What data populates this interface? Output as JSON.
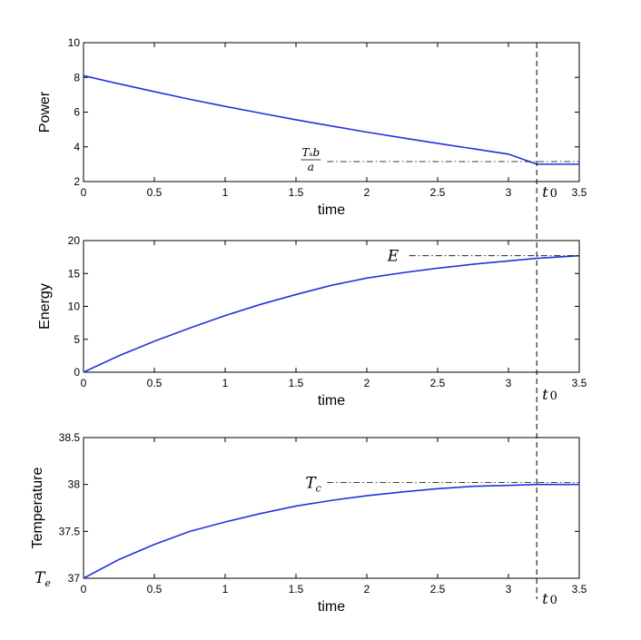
{
  "chart_data": [
    {
      "type": "line",
      "xlabel": "time",
      "ylabel": "Power",
      "xlim": [
        0,
        3.5
      ],
      "ylim": [
        2,
        10
      ],
      "xticks": [
        "0",
        "0.5",
        "1",
        "1.5",
        "2",
        "2.5",
        "3",
        "3.5"
      ],
      "yticks": [
        "2",
        "4",
        "6",
        "8",
        "10"
      ],
      "grid": false,
      "series": [
        {
          "color": "#2233dd",
          "x": [
            0,
            0.25,
            0.5,
            0.75,
            1.0,
            1.25,
            1.5,
            1.75,
            2.0,
            2.25,
            2.5,
            2.75,
            3.0,
            3.2,
            3.5
          ],
          "y": [
            8.1,
            7.63,
            7.18,
            6.74,
            6.33,
            5.94,
            5.56,
            5.2,
            4.85,
            4.52,
            4.2,
            3.89,
            3.58,
            3.0,
            3.0
          ]
        }
      ],
      "annotations": [
        {
          "text_main": "Tₛb",
          "text_sub": "a",
          "y": 3.15,
          "x_start": 1.72,
          "x_end": 3.5,
          "style": "dash-dot"
        }
      ]
    },
    {
      "type": "line",
      "xlabel": "time",
      "ylabel": "Energy",
      "xlim": [
        0,
        3.5
      ],
      "ylim": [
        0,
        20
      ],
      "xticks": [
        "0",
        "0.5",
        "1",
        "1.5",
        "2",
        "2.5",
        "3",
        "3.5"
      ],
      "yticks": [
        "0",
        "5",
        "10",
        "15",
        "20"
      ],
      "grid": false,
      "series": [
        {
          "color": "#2233dd",
          "x": [
            0,
            0.25,
            0.5,
            0.75,
            1.0,
            1.25,
            1.5,
            1.75,
            2.0,
            2.25,
            2.5,
            2.75,
            3.0,
            3.2,
            3.5
          ],
          "y": [
            0,
            2.5,
            4.7,
            6.7,
            8.6,
            10.3,
            11.8,
            13.2,
            14.3,
            15.1,
            15.8,
            16.4,
            16.9,
            17.3,
            17.7
          ]
        }
      ],
      "annotations": [
        {
          "text": "E",
          "y": 17.7,
          "x_start": 2.3,
          "x_end": 3.5,
          "style": "dash-dot"
        }
      ]
    },
    {
      "type": "line",
      "xlabel": "time",
      "ylabel": "Temperature",
      "xlim": [
        0,
        3.5
      ],
      "ylim": [
        37,
        38.5
      ],
      "xticks": [
        "0",
        "0.5",
        "1",
        "1.5",
        "2",
        "2.5",
        "3",
        "3.5"
      ],
      "yticks": [
        "37",
        "37.5",
        "38",
        "38.5"
      ],
      "grid": false,
      "series": [
        {
          "color": "#2233dd",
          "x": [
            0,
            0.25,
            0.5,
            0.75,
            1.0,
            1.25,
            1.5,
            1.75,
            2.0,
            2.25,
            2.5,
            2.75,
            3.0,
            3.2,
            3.5
          ],
          "y": [
            37.0,
            37.2,
            37.36,
            37.5,
            37.6,
            37.69,
            37.77,
            37.83,
            37.88,
            37.92,
            37.955,
            37.98,
            37.99,
            38.0,
            38.0
          ]
        }
      ],
      "annotations": [
        {
          "text": "T",
          "text_sub": "c",
          "y": 38.02,
          "x_start": 1.72,
          "x_end": 3.5,
          "style": "dash-dot"
        },
        {
          "text": "T",
          "text_sub": "e",
          "y": 37.0,
          "position": "left-of-axis"
        }
      ]
    }
  ],
  "reference_line": {
    "x": 3.2,
    "style": "dashed",
    "label": "t",
    "label_sub": "0"
  }
}
